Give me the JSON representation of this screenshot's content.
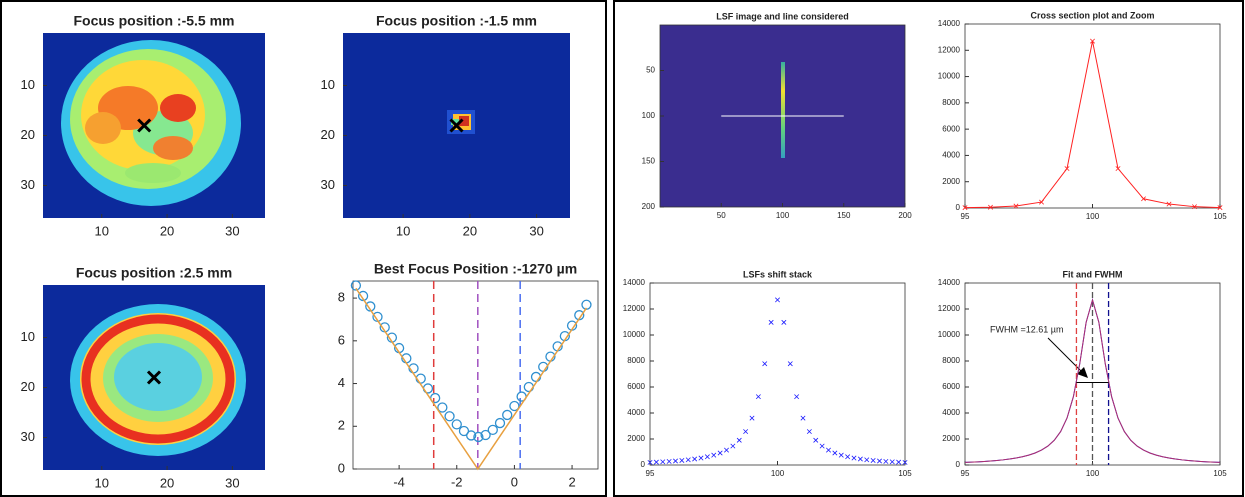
{
  "chart_data": [
    {
      "type": "heatmap",
      "title": "Focus position :-5.5 mm",
      "xlim": [
        1,
        35
      ],
      "ylim": [
        -0.5,
        36.5
      ],
      "y_reversed": true,
      "xticks": [
        10,
        20,
        30
      ],
      "yticks": [
        10,
        20,
        30
      ],
      "marker": {
        "x": 16.5,
        "y": 18
      }
    },
    {
      "type": "heatmap",
      "title": "Focus position :-1.5 mm",
      "xlim": [
        1,
        35
      ],
      "ylim": [
        -0.5,
        36.5
      ],
      "y_reversed": true,
      "xticks": [
        10,
        20,
        30
      ],
      "yticks": [
        10,
        20,
        30
      ],
      "marker": {
        "x": 18,
        "y": 18
      }
    },
    {
      "type": "heatmap",
      "title": "Focus position :2.5 mm",
      "xlim": [
        1,
        35
      ],
      "ylim": [
        -0.5,
        36.5
      ],
      "y_reversed": true,
      "xticks": [
        10,
        20,
        30
      ],
      "yticks": [
        10,
        20,
        30
      ],
      "marker": {
        "x": 18,
        "y": 18
      }
    },
    {
      "type": "line",
      "title": "Best Focus Position :-1270 µm",
      "xlim": [
        -5.6,
        2.9
      ],
      "ylim": [
        0,
        8.8
      ],
      "xticks": [
        -4,
        -2,
        0,
        2
      ],
      "yticks": [
        0,
        2,
        4,
        6,
        8
      ],
      "box": true,
      "series": [
        {
          "color": "#2f8fcf",
          "marker": "o",
          "line": false,
          "x": [
            -5.5,
            -5.25,
            -5,
            -4.75,
            -4.5,
            -4.25,
            -4,
            -3.75,
            -3.5,
            -3.25,
            -3,
            -2.75,
            -2.5,
            -2.25,
            -2,
            -1.75,
            -1.5,
            -1.25,
            -1,
            -0.75,
            -0.5,
            -0.25,
            0,
            0.25,
            0.5,
            0.75,
            1,
            1.25,
            1.5,
            1.75,
            2,
            2.25,
            2.5
          ],
          "values": [
            8.59,
            8.1,
            7.61,
            7.12,
            6.63,
            6.15,
            5.66,
            5.18,
            4.71,
            4.23,
            3.77,
            3.32,
            2.88,
            2.47,
            2.09,
            1.78,
            1.57,
            1.5,
            1.59,
            1.83,
            2.15,
            2.53,
            2.95,
            3.39,
            3.84,
            4.31,
            4.78,
            5.26,
            5.74,
            6.22,
            6.71,
            7.2,
            7.69
          ]
        },
        {
          "color": "#e8a040",
          "x": [
            -5.5,
            -1.27,
            2.5
          ],
          "values": [
            8.46,
            0,
            7.54
          ]
        }
      ],
      "vlines": [
        {
          "x": -2.8,
          "color": "#e03c3c"
        },
        {
          "x": -1.27,
          "color": "#a050c0"
        },
        {
          "x": 0.2,
          "color": "#4a6ef0"
        }
      ]
    },
    {
      "type": "image",
      "title": "LSF image and line considered",
      "xlim": [
        0,
        200
      ],
      "ylim": [
        0,
        200
      ],
      "y_reversed": true,
      "xticks": [
        50,
        100,
        150,
        200
      ],
      "yticks": [
        50,
        100,
        150,
        200
      ],
      "box": true,
      "line": {
        "x": [
          50,
          150
        ],
        "y": [
          100,
          100
        ]
      }
    },
    {
      "type": "line",
      "title": "Cross section plot and Zoom",
      "xlim": [
        95,
        105
      ],
      "ylim": [
        0,
        14000
      ],
      "xticks": [
        95,
        100,
        105
      ],
      "yticks": [
        0,
        2000,
        4000,
        6000,
        8000,
        10000,
        12000,
        14000
      ],
      "box": true,
      "series": [
        {
          "color": "#ff2020",
          "marker": "x",
          "x": [
            95,
            96,
            97,
            98,
            99,
            100,
            101,
            102,
            103,
            104,
            105
          ],
          "values": [
            30,
            60,
            150,
            450,
            3000,
            12700,
            3000,
            700,
            300,
            100,
            30
          ]
        }
      ]
    },
    {
      "type": "scatter",
      "title": "LSFs shift stack",
      "xlim": [
        95,
        105
      ],
      "ylim": [
        0,
        14000
      ],
      "xticks": [
        95,
        100,
        105
      ],
      "yticks": [
        0,
        2000,
        4000,
        6000,
        8000,
        10000,
        12000,
        14000
      ],
      "box": true,
      "series": [
        {
          "color": "#1a1aff",
          "marker": "x",
          "x": [
            95,
            95.25,
            95.5,
            95.75,
            96,
            96.25,
            96.5,
            96.75,
            97,
            97.25,
            97.5,
            97.75,
            98,
            98.25,
            98.5,
            98.75,
            99,
            99.25,
            99.5,
            99.75,
            100,
            100.25,
            100.5,
            100.75,
            101,
            101.25,
            101.5,
            101.75,
            102,
            102.25,
            102.5,
            102.75,
            103,
            103.25,
            103.5,
            103.75,
            104,
            104.25,
            104.5,
            104.75,
            105
          ],
          "values": [
            198,
            220,
            244,
            273,
            307,
            349,
            399,
            460,
            536,
            633,
            758,
            924,
            1146,
            1457,
            1904,
            2572,
            3608,
            5254,
            7791,
            10972,
            12700,
            10972,
            7791,
            5254,
            3608,
            2572,
            1904,
            1457,
            1146,
            924,
            758,
            633,
            536,
            460,
            399,
            349,
            307,
            273,
            244,
            220,
            198
          ]
        }
      ]
    },
    {
      "type": "line",
      "title": "Fit and FWHM",
      "xlim": [
        95,
        105
      ],
      "ylim": [
        0,
        14000
      ],
      "xticks": [
        95,
        100,
        105
      ],
      "yticks": [
        0,
        2000,
        4000,
        6000,
        8000,
        10000,
        12000,
        14000
      ],
      "box": true,
      "series": [
        {
          "color": "#1a1aff",
          "x": [
            95,
            95.25,
            95.5,
            95.75,
            96,
            96.25,
            96.5,
            96.75,
            97,
            97.25,
            97.5,
            97.75,
            98,
            98.25,
            98.5,
            98.75,
            99,
            99.25,
            99.5,
            99.75,
            100,
            100.25,
            100.5,
            100.75,
            101,
            101.25,
            101.5,
            101.75,
            102,
            102.25,
            102.5,
            102.75,
            103,
            103.25,
            103.5,
            103.75,
            104,
            104.25,
            104.5,
            104.75,
            105
          ],
          "values": [
            198,
            220,
            244,
            273,
            307,
            349,
            399,
            460,
            536,
            633,
            758,
            924,
            1146,
            1457,
            1904,
            2572,
            3608,
            5254,
            7791,
            10972,
            12700,
            10972,
            7791,
            5254,
            3608,
            2572,
            1904,
            1457,
            1146,
            924,
            758,
            633,
            536,
            460,
            399,
            349,
            307,
            273,
            244,
            220,
            198
          ]
        },
        {
          "color": "#b0306a",
          "x": [
            95,
            95.25,
            95.5,
            95.75,
            96,
            96.25,
            96.5,
            96.75,
            97,
            97.25,
            97.5,
            97.75,
            98,
            98.25,
            98.5,
            98.75,
            99,
            99.25,
            99.5,
            99.75,
            100,
            100.25,
            100.5,
            100.75,
            101,
            101.25,
            101.5,
            101.75,
            102,
            102.25,
            102.5,
            102.75,
            103,
            103.25,
            103.5,
            103.75,
            104,
            104.25,
            104.5,
            104.75,
            105
          ],
          "values": [
            198,
            220,
            244,
            273,
            307,
            349,
            399,
            460,
            536,
            633,
            758,
            924,
            1146,
            1457,
            1904,
            2572,
            3608,
            5254,
            7791,
            10972,
            12700,
            10972,
            7791,
            5254,
            3608,
            2572,
            1904,
            1457,
            1146,
            924,
            758,
            633,
            536,
            460,
            399,
            349,
            307,
            273,
            244,
            220,
            198
          ]
        }
      ],
      "vlines": [
        {
          "x": 99.37,
          "color": "#e04040"
        },
        {
          "x": 100.63,
          "color": "#10108f"
        },
        {
          "x": 100,
          "color": "#555555"
        }
      ],
      "hline": {
        "y": 6350,
        "x": [
          99.37,
          100.63
        ]
      },
      "annotation": "FWHM =12.61 µm"
    }
  ]
}
